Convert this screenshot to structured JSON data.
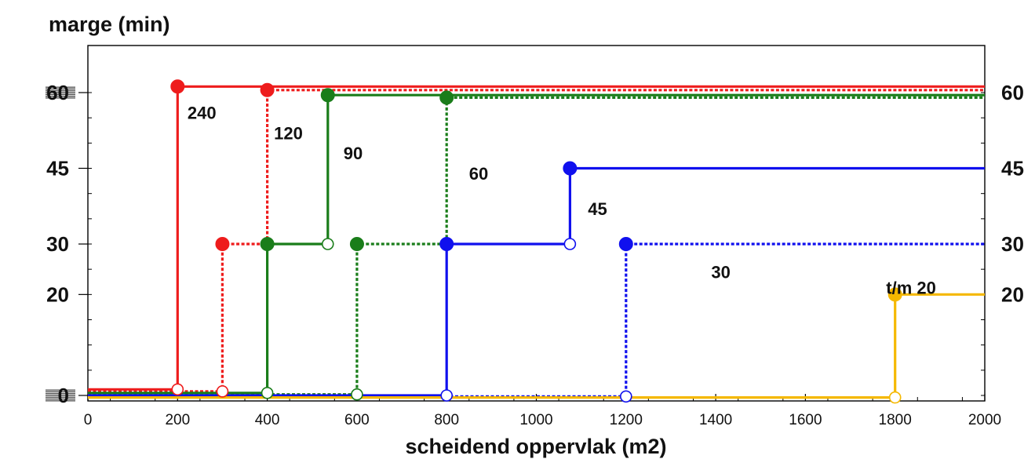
{
  "chart_data": {
    "type": "line",
    "title": "",
    "ylabel": "marge (min)",
    "xlabel": "scheidend oppervlak (m2)",
    "xlim": [
      0,
      2000
    ],
    "ylim": [
      -1,
      62
    ],
    "x_ticks": [
      0,
      200,
      400,
      600,
      800,
      1000,
      1200,
      1400,
      1600,
      1800,
      2000
    ],
    "y_ticks_left": [
      0,
      20,
      30,
      45,
      60
    ],
    "y_ticks_right": [
      20,
      30,
      45,
      60
    ],
    "grid": false,
    "colors": {
      "red": "#ee1c1c",
      "green": "#1a7d1a",
      "blue": "#1010ee",
      "yellow": "#f5b800"
    },
    "series": [
      {
        "name": "240",
        "color": "#ee1c1c",
        "style": "solid",
        "points": [
          [
            0,
            1.2
          ],
          [
            200,
            1.2
          ],
          [
            200,
            61.2
          ],
          [
            2000,
            61.2
          ]
        ]
      },
      {
        "name": "120",
        "color": "#ee1c1c",
        "style": "dotted",
        "points": [
          [
            0,
            0.8
          ],
          [
            300,
            0.8
          ],
          [
            300,
            30
          ],
          [
            400,
            30
          ],
          [
            400,
            60.5
          ],
          [
            2000,
            60.5
          ]
        ]
      },
      {
        "name": "90",
        "color": "#1a7d1a",
        "style": "solid",
        "points": [
          [
            0,
            0.5
          ],
          [
            400,
            0.5
          ],
          [
            400,
            30
          ],
          [
            535,
            30
          ],
          [
            535,
            59.5
          ],
          [
            2000,
            59.5
          ]
        ]
      },
      {
        "name": "60",
        "color": "#1a7d1a",
        "style": "dotted",
        "points": [
          [
            0,
            0.2
          ],
          [
            600,
            0.2
          ],
          [
            600,
            30
          ],
          [
            800,
            30
          ],
          [
            800,
            59
          ],
          [
            2000,
            59
          ]
        ]
      },
      {
        "name": "45",
        "color": "#1010ee",
        "style": "solid",
        "points": [
          [
            0,
            0
          ],
          [
            800,
            0
          ],
          [
            800,
            30
          ],
          [
            1075,
            30
          ],
          [
            1075,
            45
          ],
          [
            2000,
            45
          ]
        ]
      },
      {
        "name": "30",
        "color": "#1010ee",
        "style": "dotted",
        "points": [
          [
            0,
            -0.2
          ],
          [
            1200,
            -0.2
          ],
          [
            1200,
            30
          ],
          [
            2000,
            30
          ]
        ]
      },
      {
        "name": "t/m 20",
        "color": "#f5b800",
        "style": "solid",
        "points": [
          [
            0,
            -0.4
          ],
          [
            1800,
            -0.4
          ],
          [
            1800,
            20
          ],
          [
            2000,
            20
          ]
        ]
      }
    ],
    "filled_markers": [
      {
        "x": 200,
        "y": 61.2,
        "color": "#ee1c1c"
      },
      {
        "x": 400,
        "y": 60.5,
        "color": "#ee1c1c"
      },
      {
        "x": 300,
        "y": 30,
        "color": "#ee1c1c"
      },
      {
        "x": 535,
        "y": 59.5,
        "color": "#1a7d1a"
      },
      {
        "x": 400,
        "y": 30,
        "color": "#1a7d1a"
      },
      {
        "x": 800,
        "y": 59,
        "color": "#1a7d1a"
      },
      {
        "x": 600,
        "y": 30,
        "color": "#1a7d1a"
      },
      {
        "x": 1075,
        "y": 45,
        "color": "#1010ee"
      },
      {
        "x": 800,
        "y": 30,
        "color": "#1010ee"
      },
      {
        "x": 1200,
        "y": 30,
        "color": "#1010ee"
      },
      {
        "x": 1800,
        "y": 20,
        "color": "#f5b800"
      }
    ],
    "open_markers": [
      {
        "x": 200,
        "y": 1.2,
        "color": "#ee1c1c"
      },
      {
        "x": 300,
        "y": 0.8,
        "color": "#ee1c1c"
      },
      {
        "x": 535,
        "y": 30,
        "color": "#1a7d1a"
      },
      {
        "x": 400,
        "y": 0.5,
        "color": "#1a7d1a"
      },
      {
        "x": 600,
        "y": 0.2,
        "color": "#1a7d1a"
      },
      {
        "x": 1075,
        "y": 30,
        "color": "#1010ee"
      },
      {
        "x": 800,
        "y": 0,
        "color": "#1010ee"
      },
      {
        "x": 1200,
        "y": -0.2,
        "color": "#1010ee"
      },
      {
        "x": 1800,
        "y": -0.4,
        "color": "#f5b800"
      }
    ],
    "annotations": [
      {
        "text": "240",
        "x": 222,
        "y": 56
      },
      {
        "text": "120",
        "x": 415,
        "y": 52
      },
      {
        "text": "90",
        "x": 570,
        "y": 48
      },
      {
        "text": "60",
        "x": 850,
        "y": 44
      },
      {
        "text": "45",
        "x": 1115,
        "y": 37
      },
      {
        "text": "30",
        "x": 1390,
        "y": 24.5
      },
      {
        "text": "t/m 20",
        "x": 1780,
        "y": 21.4
      }
    ]
  }
}
